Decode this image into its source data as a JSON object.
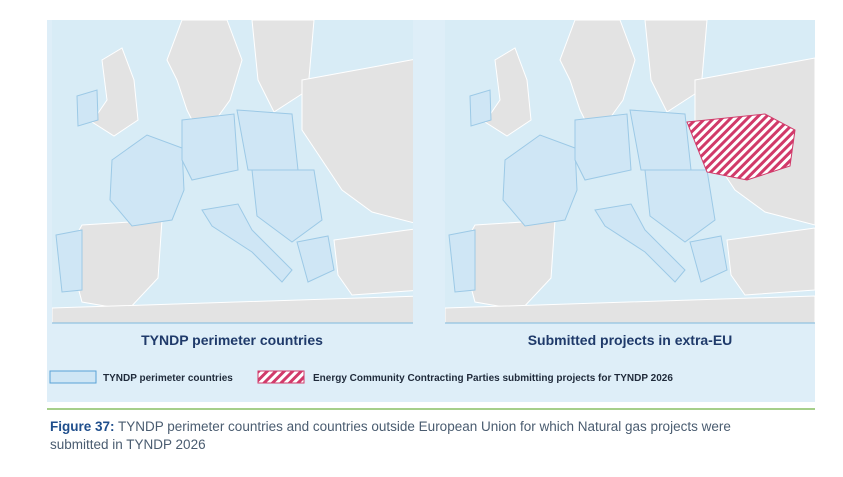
{
  "maps": [
    {
      "title": "TYNDP perimeter countries"
    },
    {
      "title": "Submitted projects in extra-EU"
    }
  ],
  "legend": [
    {
      "label": "TYNDP perimeter countries"
    },
    {
      "label": "Energy Community Contracting Parties submitting projects for TYNDP 2026"
    }
  ],
  "caption": {
    "label": "Figure 37:",
    "text": "TYNDP perimeter countries and countries outside European Union for which Natural gas projects were submitted in TYNDP 2026"
  }
}
